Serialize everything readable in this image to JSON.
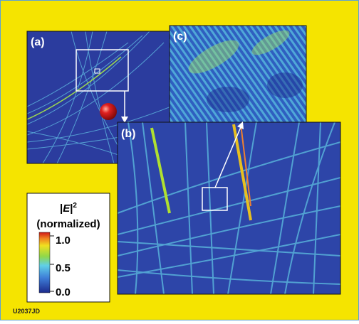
{
  "panels": {
    "a": "(a)",
    "b": "(b)",
    "c": "(c)"
  },
  "colorbar": {
    "pre": "|",
    "symbol": "E",
    "post": "|",
    "exponent": "2",
    "unit": "(normalized)",
    "ticks": [
      "1.0",
      "0.5",
      "0.0"
    ]
  },
  "footer": "U2037JD"
}
